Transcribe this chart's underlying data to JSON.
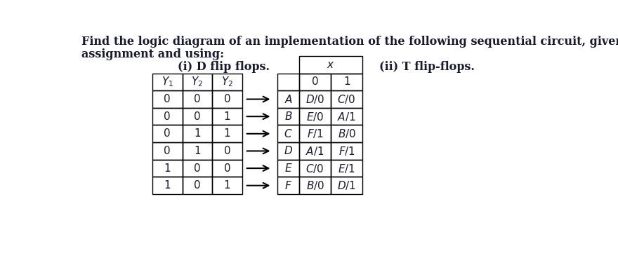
{
  "title_line1": "Find the logic diagram of an implementation of the following sequential circuit, given the state",
  "title_line2": "assignment and using:",
  "subtitle_left": "(i) D flip flops.",
  "subtitle_right": "(ii) T flip-flops.",
  "left_table": {
    "headers": [
      "$Y_1$",
      "$Y_2$",
      "$Y_2$"
    ],
    "rows": [
      [
        "0",
        "0",
        "0"
      ],
      [
        "0",
        "0",
        "1"
      ],
      [
        "0",
        "1",
        "1"
      ],
      [
        "0",
        "1",
        "0"
      ],
      [
        "1",
        "0",
        "0"
      ],
      [
        "1",
        "0",
        "1"
      ]
    ]
  },
  "right_table": {
    "x_label": "$x$",
    "col_headers": [
      "0",
      "1"
    ],
    "rows": [
      [
        "$A$",
        "$D/0$",
        "$C/0$"
      ],
      [
        "$B$",
        "$E/0$",
        "$A/1$"
      ],
      [
        "$C$",
        "$F/1$",
        "$B/0$"
      ],
      [
        "$D$",
        "$A/1$",
        "$F/1$"
      ],
      [
        "$E$",
        "$C/0$",
        "$E/1$"
      ],
      [
        "$F$",
        "$B/0$",
        "$D/1$"
      ]
    ]
  },
  "bg_color": "#ffffff",
  "text_color": "#1a1a2e"
}
